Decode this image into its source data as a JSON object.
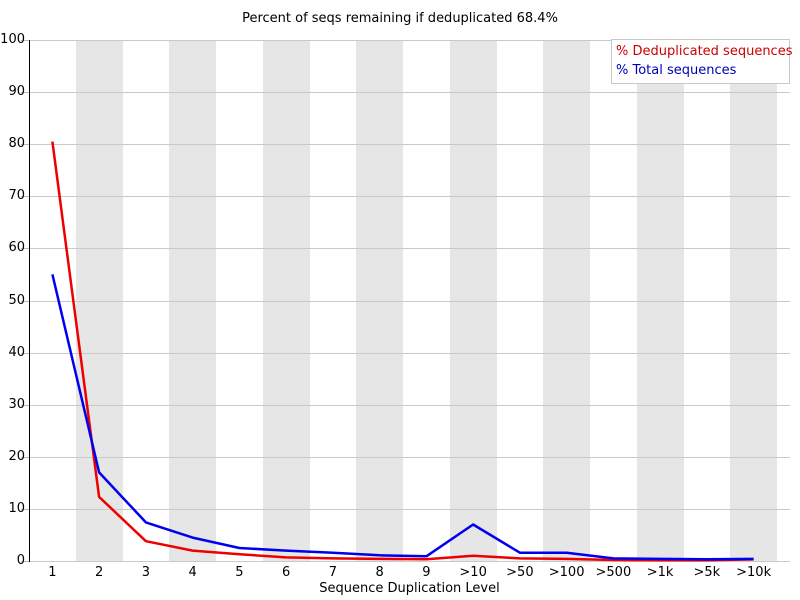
{
  "title": "Percent of seqs remaining if deduplicated 68.4%",
  "legend": {
    "items": [
      {
        "label": "% Deduplicated sequences",
        "color": "#cc0000"
      },
      {
        "label": "% Total sequences",
        "color": "#0000bb"
      }
    ]
  },
  "chart_data": {
    "type": "line",
    "title": "Percent of seqs remaining if deduplicated 68.4%",
    "xlabel": "Sequence Duplication Level",
    "ylabel": "",
    "ylim": [
      0,
      100
    ],
    "ytick_step": 10,
    "grid": "horizontal gridlines every 10 units; alternating vertical category bands",
    "legend_position": "top-right",
    "band_color": "#e6e6e6",
    "gridline_color": "#c9c9c9",
    "categories": [
      "1",
      "2",
      "3",
      "4",
      "5",
      "6",
      "7",
      "8",
      "9",
      ">10",
      ">50",
      ">100",
      ">500",
      ">1k",
      ">5k",
      ">10k"
    ],
    "series": [
      {
        "name": "% Deduplicated sequences",
        "color": "#ee0000",
        "values": [
          80.5,
          12.3,
          3.8,
          2.0,
          1.3,
          0.7,
          0.5,
          0.4,
          0.35,
          1.0,
          0.5,
          0.4,
          0.2,
          0.15,
          0.15,
          0.3
        ]
      },
      {
        "name": "% Total sequences",
        "color": "#0000ee",
        "values": [
          55.0,
          17.0,
          7.4,
          4.5,
          2.5,
          2.0,
          1.6,
          1.1,
          0.9,
          7.0,
          1.6,
          1.6,
          0.5,
          0.4,
          0.35,
          0.4
        ]
      }
    ]
  }
}
